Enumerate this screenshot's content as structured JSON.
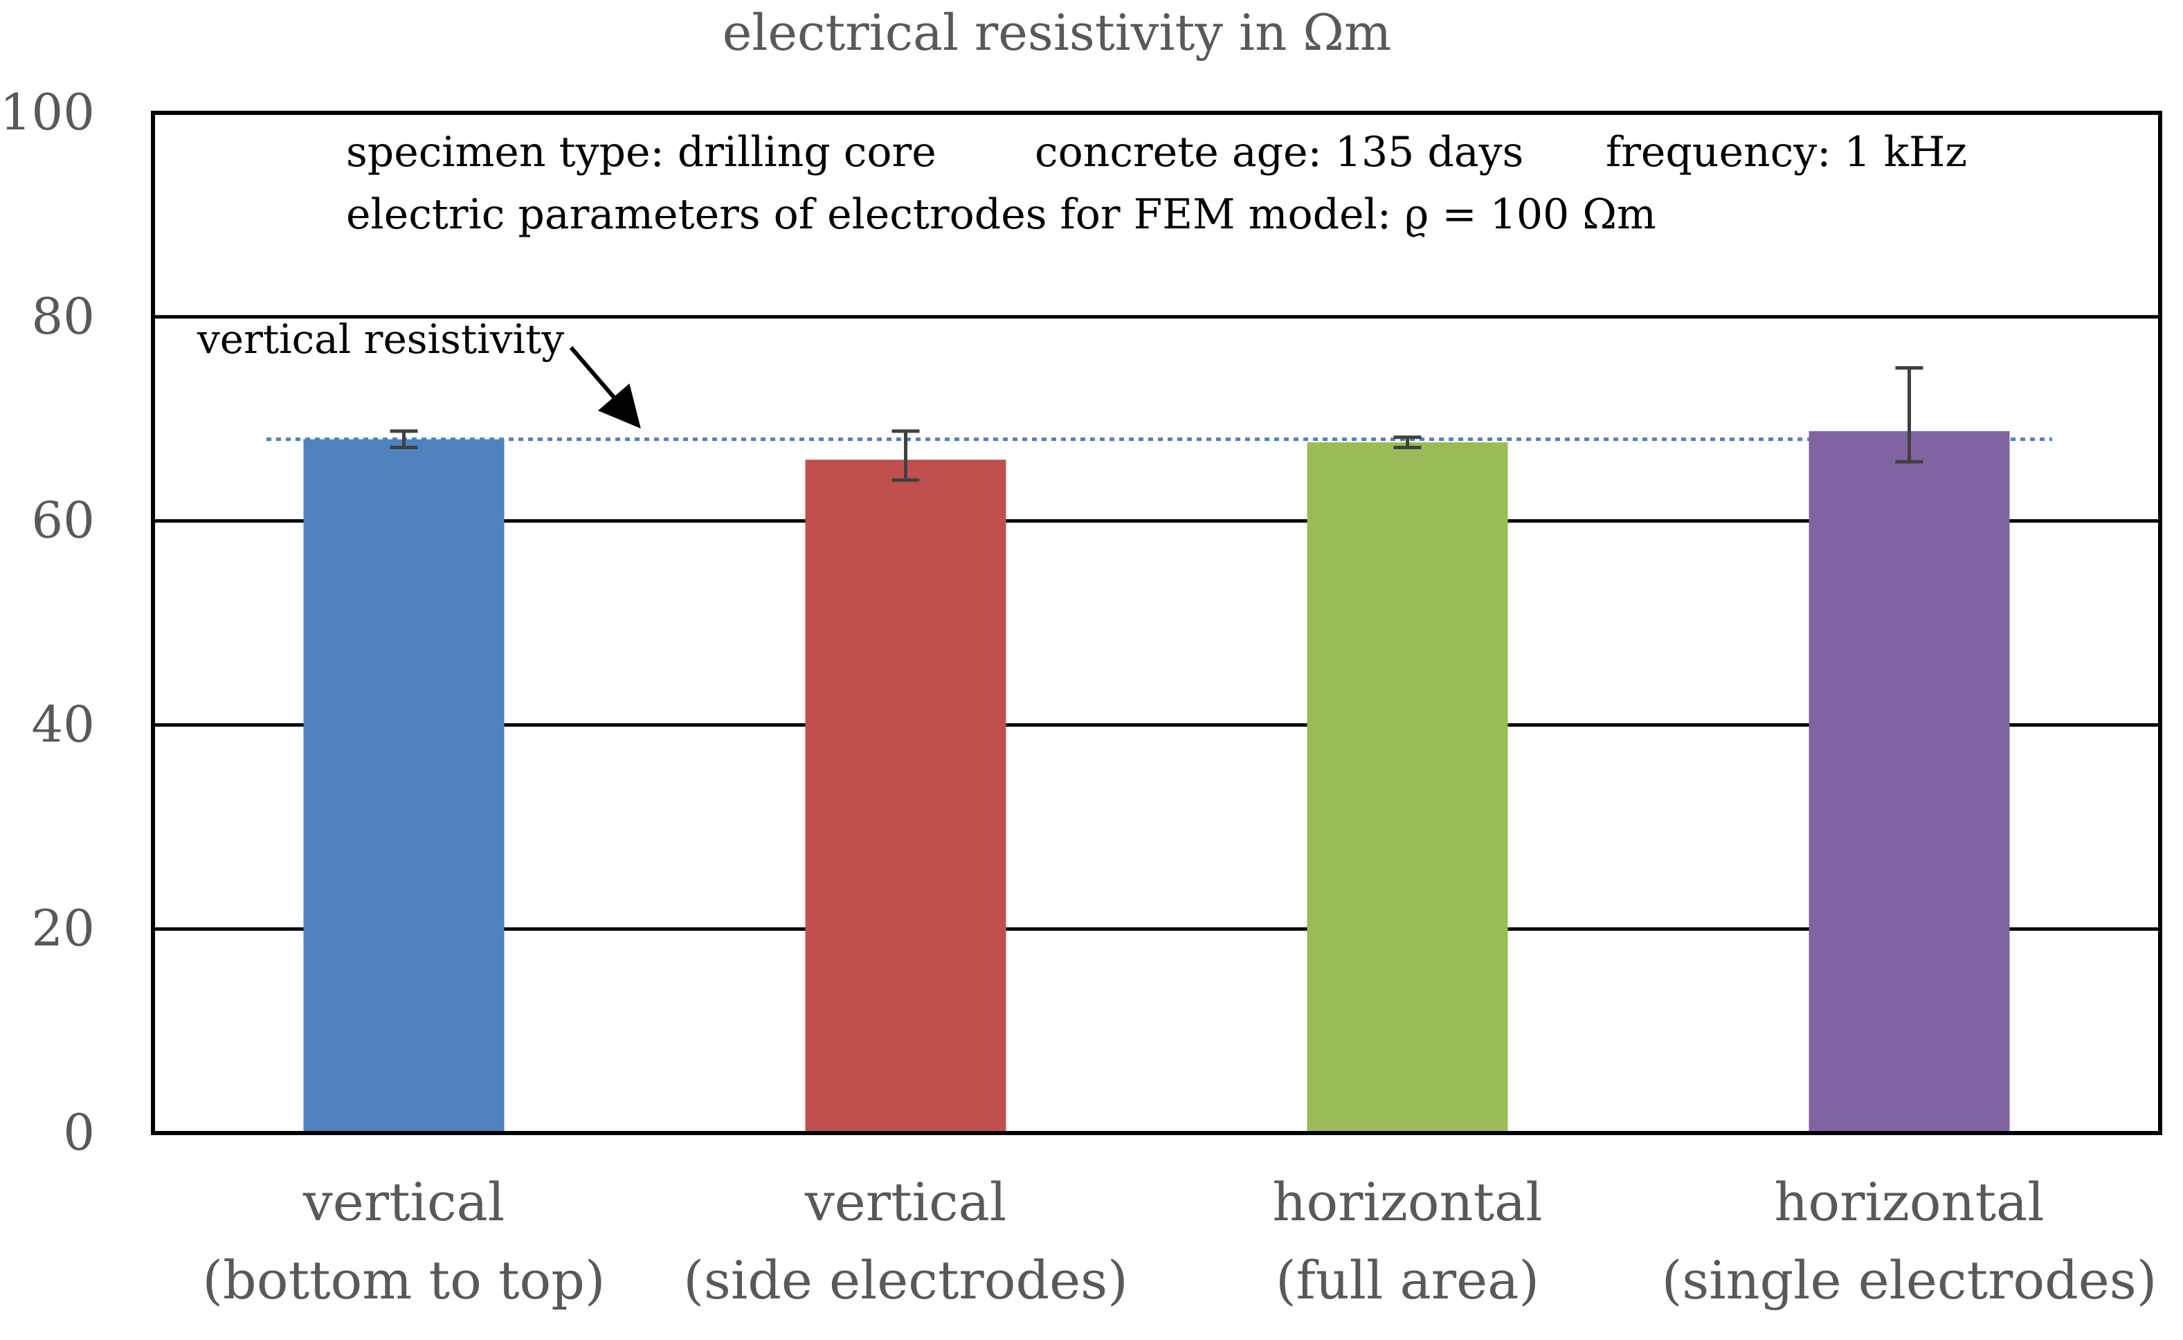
{
  "chart_data": {
    "type": "bar",
    "title": "electrical resistivity in Ωm",
    "xlabel": "",
    "ylabel": "",
    "ylim": [
      0,
      100
    ],
    "yticks": [
      0,
      20,
      40,
      60,
      80,
      100
    ],
    "grid": true,
    "categories": [
      {
        "line1": "vertical",
        "line2": "(bottom to top)"
      },
      {
        "line1": "vertical",
        "line2": "(side electrodes)"
      },
      {
        "line1": "horizontal",
        "line2": "(full area)"
      },
      {
        "line1": "horizontal",
        "line2": "(single electrodes)"
      }
    ],
    "values": [
      68.0,
      66.0,
      67.7,
      68.8
    ],
    "error_low": [
      67.2,
      64.0,
      67.2,
      65.8
    ],
    "error_high": [
      68.8,
      68.8,
      68.2,
      75.0
    ],
    "colors": [
      "#4f81bd",
      "#c0504d",
      "#9bbb59",
      "#8064a2"
    ],
    "reference_line": {
      "value": 68.0,
      "label": "vertical resistivity",
      "color": "#4f81bd"
    },
    "annotations": {
      "specimen": "specimen type: drilling core",
      "age": "concrete age: 135 days",
      "frequency": "frequency: 1 kHz",
      "electrodes": "electric parameters of electrodes for FEM model: ϱ = 100 Ωm"
    }
  }
}
